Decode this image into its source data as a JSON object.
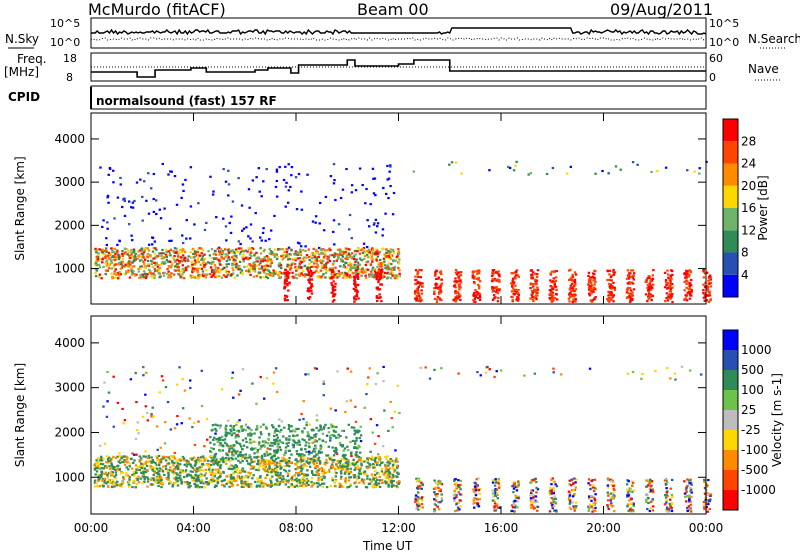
{
  "header": {
    "station": "McMurdo (fitACF)",
    "beam": "Beam 00",
    "date": "09/Aug/2011"
  },
  "status_panel": {
    "nsky_label": "N.Sky",
    "nsky_ticks": [
      "10^5",
      "10^0"
    ],
    "nsearch_label": "N.Search",
    "nsearch_ticks": [
      "10^5",
      "10^0"
    ],
    "freq_label_line1": "Freq.",
    "freq_label_line2": "[MHz]",
    "freq_ticks": [
      "18",
      "8"
    ],
    "nave_label": "Nave",
    "nave_ticks": [
      "60",
      "0"
    ],
    "cpid_label": "CPID",
    "cpid_text": "normalsound (fast) 157 RF"
  },
  "colors": {
    "power_scale": [
      "#0000ff",
      "#2850b4",
      "#2e8b57",
      "#6fb26a",
      "#ffd700",
      "#ff8c00",
      "#ff4500",
      "#ff0000"
    ],
    "velocity_scale": [
      "#ff0000",
      "#ff4500",
      "#ff8c00",
      "#ffd700",
      "#bdbdbd",
      "#6cc24a",
      "#2e8b57",
      "#2850b4",
      "#0000ff"
    ],
    "ground_scatter": "#ff2a00"
  },
  "chart_data": [
    {
      "type": "heatmap",
      "panel": "power",
      "ylabel": "Slant Range [km]",
      "yticks": [
        "1000",
        "2000",
        "3000",
        "4000"
      ],
      "ylim": [
        180,
        4600
      ],
      "xlim": [
        0,
        24
      ],
      "xticks": [
        "00:00",
        "04:00",
        "08:00",
        "12:00",
        "16:00",
        "20:00",
        "00:00"
      ],
      "xlabel": "Time UT",
      "colorbar": {
        "label": "Power [dB]",
        "ticks": [
          "4",
          "8",
          "12",
          "16",
          "20",
          "24",
          "28"
        ],
        "range": [
          0,
          30
        ]
      },
      "regions": [
        {
          "t0": 0.1,
          "t1": 12.0,
          "r0": 800,
          "r1": 1500,
          "level": "high",
          "note": "main E/F band"
        },
        {
          "t0": 0.3,
          "t1": 12.0,
          "r0": 1500,
          "r1": 3500,
          "level": "low",
          "note": "scattered weak echoes"
        },
        {
          "t0": 12.5,
          "t1": 24.0,
          "r0": 3200,
          "r1": 3500,
          "level": "low",
          "note": "sporadic high-range echoes"
        },
        {
          "t0": 12.5,
          "t1": 24.0,
          "r0": 250,
          "r1": 1100,
          "level": "ground",
          "note": "periodic ground scatter bursts"
        }
      ]
    },
    {
      "type": "heatmap",
      "panel": "velocity",
      "ylabel": "Slant Range [km]",
      "yticks": [
        "1000",
        "2000",
        "3000",
        "4000"
      ],
      "ylim": [
        180,
        4600
      ],
      "xlim": [
        0,
        24
      ],
      "xticks": [
        "00:00",
        "04:00",
        "08:00",
        "12:00",
        "16:00",
        "20:00",
        "00:00"
      ],
      "xlabel": "Time UT",
      "colorbar": {
        "label": "Velocity [m s-1]",
        "ticks": [
          "1000",
          "500",
          "100",
          "25",
          "-25",
          "-100",
          "-500",
          "-1000"
        ]
      },
      "regions": [
        {
          "t0": 0.1,
          "t1": 12.0,
          "r0": 800,
          "r1": 1500,
          "level": "mixed",
          "note": "mainly green/orange velocities"
        },
        {
          "t0": 4.5,
          "t1": 10.5,
          "r0": 1500,
          "r1": 2200,
          "level": "green"
        },
        {
          "t0": 12.5,
          "t1": 24.0,
          "r0": 250,
          "r1": 1100,
          "level": "mixed",
          "note": "periodic bursts"
        }
      ]
    }
  ]
}
